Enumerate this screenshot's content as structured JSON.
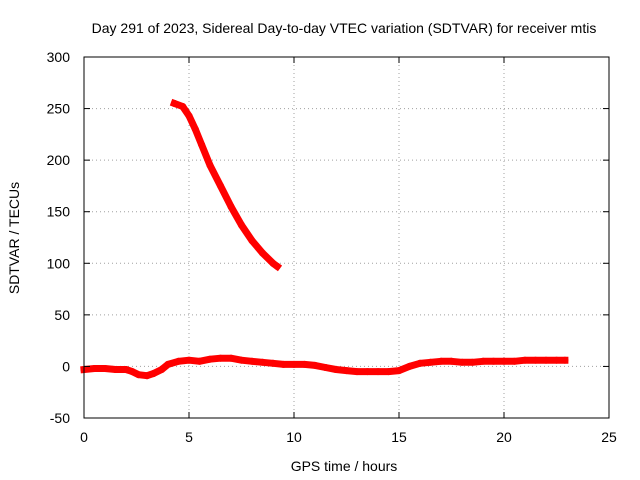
{
  "chart_data": {
    "type": "line",
    "title": "Day 291 of 2023, Sidereal Day-to-day VTEC variation (SDTVAR) for receiver mtis",
    "xlabel": "GPS time / hours",
    "ylabel": "SDTVAR / TECUs",
    "xlim": [
      0,
      25
    ],
    "ylim": [
      -50,
      300
    ],
    "xticks": [
      "0",
      "5",
      "10",
      "15",
      "20",
      "25"
    ],
    "yticks": [
      "-50",
      "0",
      "50",
      "100",
      "150",
      "200",
      "250",
      "300"
    ],
    "grid": true,
    "series_color": "#ff0000",
    "series": [
      {
        "x": [
          4.3,
          4.7,
          5.0,
          5.3,
          5.6,
          6.0,
          6.5,
          7.0,
          7.5,
          8.0,
          8.5,
          9.0,
          9.2
        ],
        "y": [
          255,
          252,
          243,
          230,
          215,
          195,
          175,
          155,
          137,
          122,
          110,
          100,
          97
        ]
      },
      {
        "x": [
          0,
          0.5,
          1,
          1.5,
          2,
          2.3,
          2.6,
          3.0,
          3.3,
          3.7,
          4.0,
          4.5,
          5.0,
          5.5,
          6.0,
          6.5,
          7.0,
          7.5,
          8.0,
          8.5,
          9.0,
          9.5,
          10.0,
          10.5,
          11.0,
          11.5,
          12.0,
          12.5,
          13.0,
          13.5,
          14.0,
          14.5,
          15.0,
          15.5,
          16.0,
          16.5,
          17.0,
          17.5,
          18.0,
          18.5,
          19.0,
          19.5,
          20.0,
          20.5,
          21.0,
          21.5,
          22.0,
          22.5,
          22.9
        ],
        "y": [
          -3,
          -2,
          -2,
          -3,
          -3,
          -5,
          -8,
          -9,
          -7,
          -3,
          2,
          5,
          6,
          5,
          7,
          8,
          8,
          6,
          5,
          4,
          3,
          2,
          2,
          2,
          1,
          -1,
          -3,
          -4,
          -5,
          -5,
          -5,
          -5,
          -4,
          0,
          3,
          4,
          5,
          5,
          4,
          4,
          5,
          5,
          5,
          5,
          6,
          6,
          6,
          6,
          6
        ]
      }
    ]
  }
}
